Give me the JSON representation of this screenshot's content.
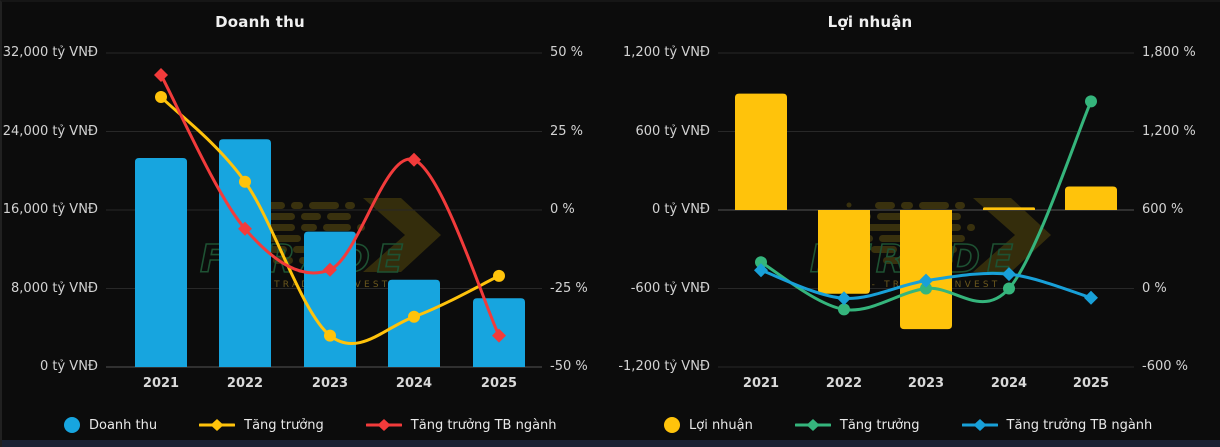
{
  "watermark": {
    "brand": "FTRADE",
    "tagline": "DATA - TRADE - INVEST"
  },
  "chart_data": [
    {
      "id": "doanh-thu",
      "type": "combo-bar-line",
      "title": "Doanh thu",
      "categories": [
        "2021",
        "2022",
        "2023",
        "2024",
        "2025"
      ],
      "grid": true,
      "legend_position": "bottom",
      "left_axis": {
        "unit": "tỷ VNĐ",
        "min": 0,
        "max": 32000,
        "ticks": [
          "32,000 tỷ VNĐ",
          "24,000 tỷ VNĐ",
          "16,000 tỷ VNĐ",
          "8,000 tỷ VNĐ",
          "0 tỷ VNĐ"
        ]
      },
      "right_axis": {
        "unit": "%",
        "min": -50,
        "max": 50,
        "ticks": [
          "50 %",
          "25 %",
          "0 %",
          "-25 %",
          "-50 %"
        ]
      },
      "series": [
        {
          "name": "Doanh thu",
          "kind": "bar",
          "axis": "left",
          "color": "#17A5DF",
          "unit": "tỷ VNĐ",
          "values": [
            21300,
            23200,
            13800,
            8900,
            7000
          ]
        },
        {
          "name": "Tăng trưởng",
          "kind": "line",
          "marker": "circle",
          "axis": "right",
          "color": "#FFC30B",
          "unit": "%",
          "values": [
            36,
            9,
            -40,
            -34,
            -21
          ]
        },
        {
          "name": "Tăng trưởng TB ngành",
          "kind": "line",
          "marker": "diamond",
          "axis": "right",
          "color": "#F23B3B",
          "unit": "%",
          "values": [
            43,
            -6,
            -19,
            16,
            -40
          ]
        }
      ]
    },
    {
      "id": "loi-nhuan",
      "type": "combo-bar-line",
      "title": "Lợi nhuận",
      "categories": [
        "2021",
        "2022",
        "2023",
        "2024",
        "2025"
      ],
      "grid": true,
      "legend_position": "bottom",
      "left_axis": {
        "unit": "tỷ VNĐ",
        "min": -1200,
        "max": 1200,
        "ticks": [
          "1,200 tỷ VNĐ",
          "600 tỷ VNĐ",
          "0 tỷ VNĐ",
          "-600 tỷ VNĐ",
          "-1,200 tỷ VNĐ"
        ]
      },
      "right_axis": {
        "unit": "%",
        "min": -600,
        "max": 1800,
        "ticks": [
          "1,800 %",
          "1,200 %",
          "600 %",
          "0 %",
          "-600 %"
        ]
      },
      "series": [
        {
          "name": "Lợi nhuận",
          "kind": "bar",
          "axis": "left",
          "color": "#FFC30B",
          "unit": "tỷ VNĐ",
          "values": [
            890,
            -640,
            -910,
            20,
            180
          ]
        },
        {
          "name": "Tăng trưởng",
          "kind": "line",
          "marker": "circle",
          "axis": "right",
          "color": "#35B57C",
          "unit": "%",
          "values": [
            200,
            -160,
            0,
            0,
            1430
          ]
        },
        {
          "name": "Tăng trưởng TB ngành",
          "kind": "line",
          "marker": "diamond",
          "axis": "right",
          "color": "#18A0D8",
          "unit": "%",
          "values": [
            140,
            -75,
            60,
            110,
            -70
          ]
        }
      ]
    }
  ]
}
